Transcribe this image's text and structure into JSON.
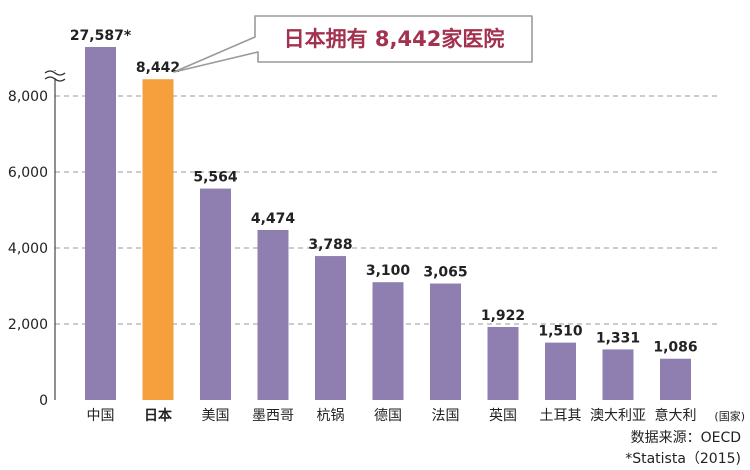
{
  "chart_data": {
    "type": "bar",
    "categories": [
      "中国",
      "日本",
      "美国",
      "墨西哥",
      "杭锅",
      "德国",
      "法国",
      "英国",
      "土耳其",
      "澳大利亚",
      "意大利"
    ],
    "values": [
      27587,
      8442,
      5564,
      4474,
      3788,
      3100,
      3065,
      1922,
      1510,
      1331,
      1086
    ],
    "value_labels": [
      "27,587*",
      "8,442",
      "5,564",
      "4,474",
      "3,788",
      "3,100",
      "3,065",
      "1,922",
      "1,510",
      "1,331",
      "1,086"
    ],
    "highlight_index": 1,
    "axis_break": true,
    "yticks": [
      0,
      2000,
      4000,
      6000,
      8000
    ],
    "ytick_labels": [
      "0",
      "2,000",
      "4,000",
      "6,000",
      "8,000"
    ],
    "ylim": [
      0,
      9000
    ],
    "x_unit_label": "(国家)",
    "callout": "日本拥有 8,442家医院",
    "source_lines": [
      "数据来源：OECD",
      "*Statista（2015)"
    ],
    "grid": "dashed horizontal",
    "colors": {
      "bar": "#8f7fb0",
      "highlight": "#f5a03c",
      "callout_text": "#a3324f",
      "callout_border": "#9a9a9a",
      "grid": "#999999"
    }
  }
}
